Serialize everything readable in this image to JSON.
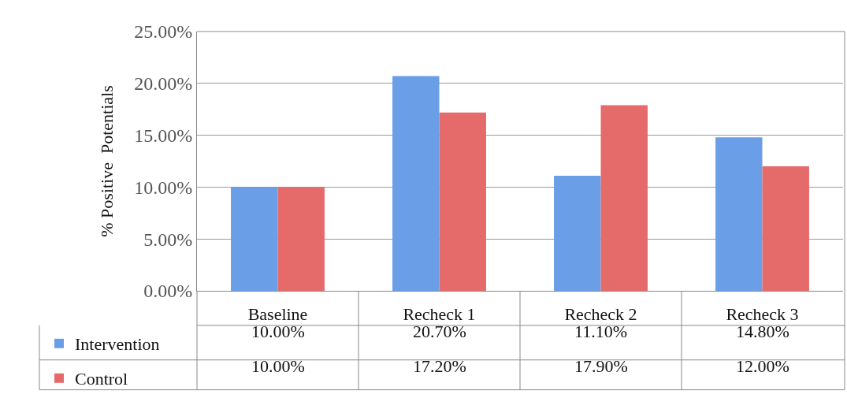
{
  "chart_data": {
    "type": "bar",
    "ylabel": "% Positive  Potentials",
    "categories": [
      "Baseline",
      "Recheck 1",
      "Recheck 2",
      "Recheck 3"
    ],
    "series": [
      {
        "name": "Intervention",
        "color": "#6a9fe8",
        "values": [
          10.0,
          20.7,
          11.1,
          14.8
        ],
        "value_labels": [
          "10.00%",
          "20.70%",
          "11.10%",
          "14.80%"
        ]
      },
      {
        "name": "Control",
        "color": "#e56b6b",
        "values": [
          10.0,
          17.2,
          17.9,
          12.0
        ],
        "value_labels": [
          "10.00%",
          "17.20%",
          "17.90%",
          "12.00%"
        ]
      }
    ],
    "ylim": [
      0,
      25
    ],
    "yticks": [
      {
        "value": 0,
        "label": "0.00%"
      },
      {
        "value": 5,
        "label": "5.00%"
      },
      {
        "value": 10,
        "label": "10.00%"
      },
      {
        "value": 15,
        "label": "15.00%"
      },
      {
        "value": 20,
        "label": "20.00%"
      },
      {
        "value": 25,
        "label": "25.00%"
      }
    ],
    "grid": "y",
    "legend": "bottom left"
  }
}
